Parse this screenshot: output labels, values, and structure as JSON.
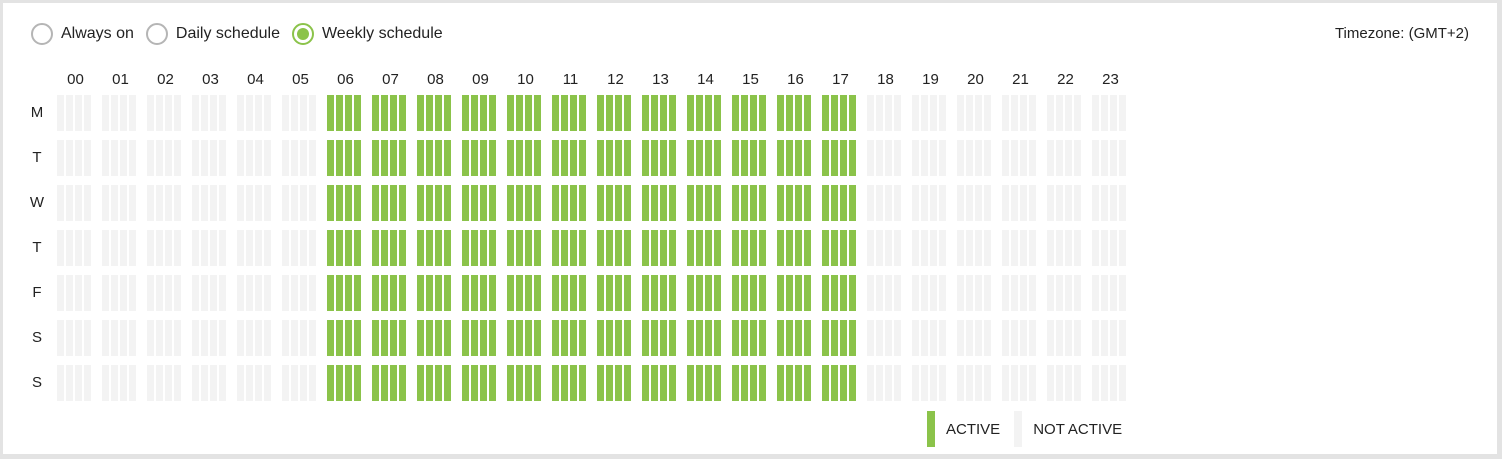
{
  "schedule_modes": [
    {
      "label": "Always on",
      "checked": false
    },
    {
      "label": "Daily schedule",
      "checked": false
    },
    {
      "label": "Weekly schedule",
      "checked": true
    }
  ],
  "timezone": "Timezone: (GMT+2)",
  "hours": [
    "00",
    "01",
    "02",
    "03",
    "04",
    "05",
    "06",
    "07",
    "08",
    "09",
    "10",
    "11",
    "12",
    "13",
    "14",
    "15",
    "16",
    "17",
    "18",
    "19",
    "20",
    "21",
    "22",
    "23"
  ],
  "days": [
    "M",
    "T",
    "W",
    "T",
    "F",
    "S",
    "S"
  ],
  "slots_per_hour": 4,
  "active_range": {
    "start_hour": 6,
    "end_hour": 17
  },
  "legend": {
    "active": "ACTIVE",
    "inactive": "NOT ACTIVE"
  },
  "colors": {
    "active": "#8bc34a",
    "inactive": "#f3f3f3",
    "radio_checked": "#8bc34a"
  }
}
